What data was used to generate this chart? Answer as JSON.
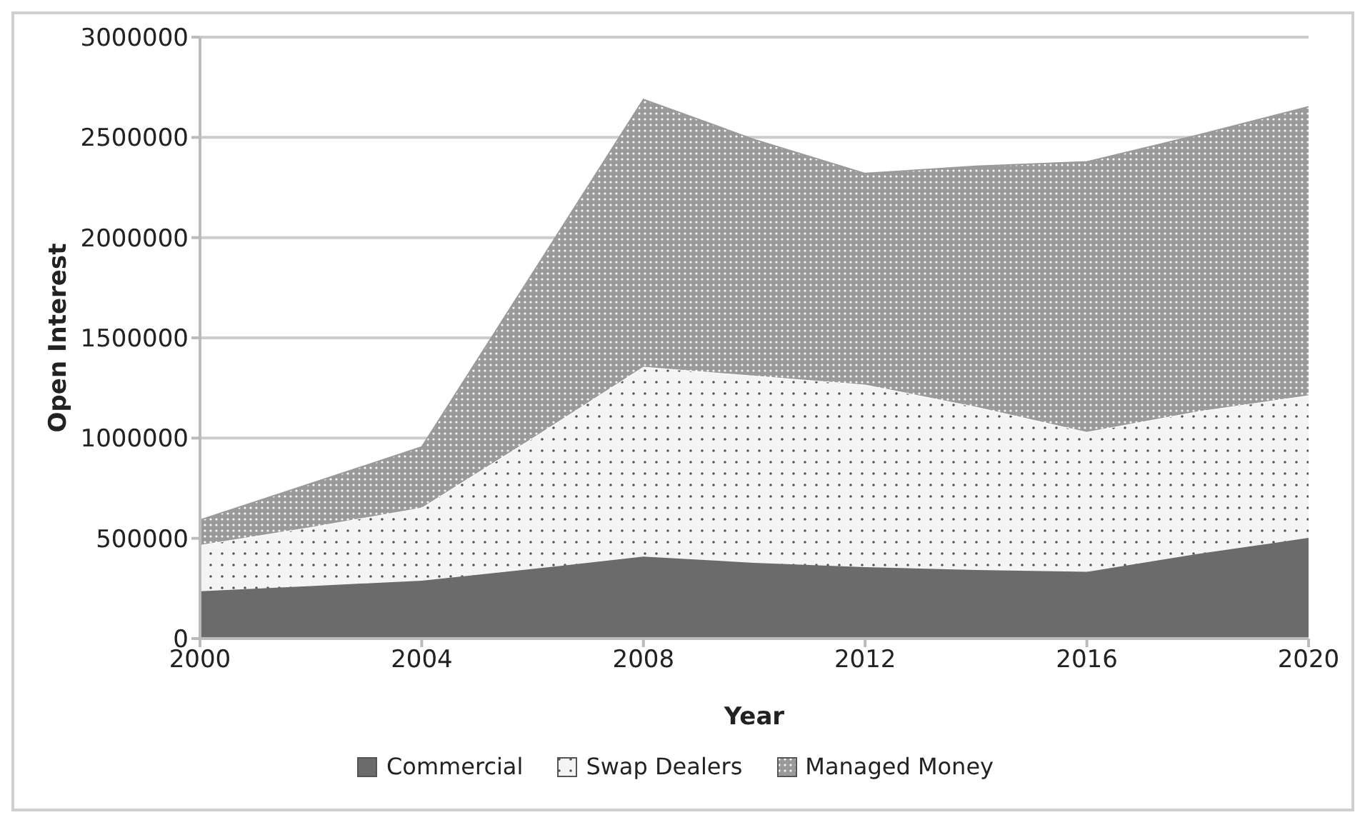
{
  "chart_data": {
    "type": "area",
    "stacked": true,
    "xlabel": "Year",
    "ylabel": "Open Interest",
    "x": [
      2000,
      2002,
      2004,
      2006,
      2008,
      2010,
      2012,
      2014,
      2016,
      2018,
      2020
    ],
    "series": [
      {
        "name": "Commercial",
        "color": "#6b6b6b",
        "values": [
          236000,
          262000,
          289000,
          347000,
          409000,
          378000,
          356000,
          342000,
          333000,
          422000,
          502000
        ]
      },
      {
        "name": "Swap Dealers",
        "color": "#f4f4f4",
        "values": [
          231000,
          294000,
          364000,
          653000,
          947000,
          933000,
          911000,
          814000,
          698000,
          711000,
          711000
        ]
      },
      {
        "name": "Managed Money",
        "color": "#9a9a9a",
        "values": [
          124000,
          217000,
          303000,
          822000,
          1333000,
          1178000,
          1053000,
          1200000,
          1347000,
          1378000,
          1440000
        ]
      }
    ],
    "xlim": [
      2000,
      2020
    ],
    "xticks": [
      2000,
      2004,
      2008,
      2012,
      2016,
      2020
    ],
    "ylim": [
      0,
      3000000
    ],
    "yticks": [
      0,
      500000,
      1000000,
      1500000,
      2000000,
      2500000,
      3000000
    ],
    "grid": "y",
    "legend": "bottom"
  }
}
